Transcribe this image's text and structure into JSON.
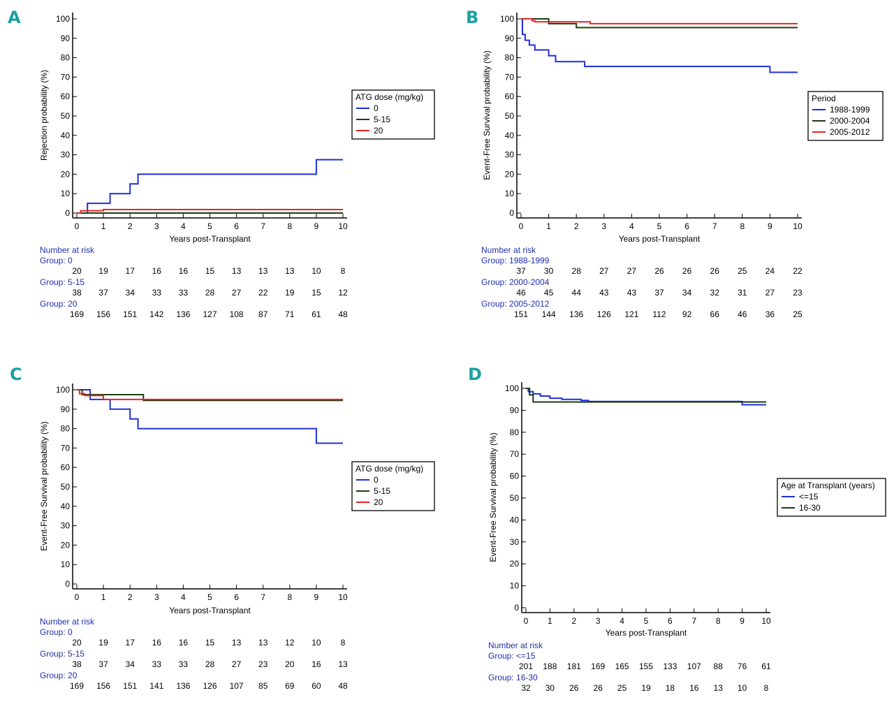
{
  "chart_data": [
    {
      "letter": "A",
      "type": "line",
      "xlabel": "Years post-Transplant",
      "ylabel": "Rejection probability (%)",
      "xlim": [
        0,
        10
      ],
      "ylim": [
        0,
        100
      ],
      "x_ticks": [
        "0",
        "1",
        "2",
        "3",
        "4",
        "5",
        "6",
        "7",
        "8",
        "9",
        "10"
      ],
      "y_ticks": [
        "0",
        "10",
        "20",
        "30",
        "40",
        "50",
        "60",
        "70",
        "80",
        "90",
        "100"
      ],
      "legend": {
        "title": "ATG dose (mg/kg)",
        "entries": [
          {
            "label": "0",
            "color": "#1f2fd6"
          },
          {
            "label": "5-15",
            "color": "#1d3b12"
          },
          {
            "label": "20",
            "color": "#e52521"
          }
        ]
      },
      "series": [
        {
          "name": "0",
          "color": "#1f2fd6",
          "points": [
            [
              0,
              0
            ],
            [
              0.4,
              0
            ],
            [
              0.4,
              5
            ],
            [
              1.25,
              5
            ],
            [
              1.25,
              10
            ],
            [
              2,
              10
            ],
            [
              2,
              15
            ],
            [
              2.3,
              15
            ],
            [
              2.3,
              20
            ],
            [
              9,
              20
            ],
            [
              9,
              27.5
            ],
            [
              10,
              27.5
            ]
          ]
        },
        {
          "name": "5-15",
          "color": "#1d3b12",
          "points": [
            [
              0,
              0
            ],
            [
              10,
              0
            ]
          ]
        },
        {
          "name": "20",
          "color": "#e52521",
          "points": [
            [
              0,
              0
            ],
            [
              0.15,
              0
            ],
            [
              0.15,
              1.2
            ],
            [
              1,
              1.2
            ],
            [
              1,
              1.8
            ],
            [
              10,
              1.8
            ]
          ]
        }
      ],
      "risk": {
        "title": "Number at risk",
        "groups": [
          {
            "label": "Group: 0",
            "values": [
              "20",
              "19",
              "17",
              "16",
              "16",
              "15",
              "13",
              "13",
              "13",
              "10",
              "8"
            ]
          },
          {
            "label": "Group: 5-15",
            "values": [
              "38",
              "37",
              "34",
              "33",
              "33",
              "28",
              "27",
              "22",
              "19",
              "15",
              "12"
            ]
          },
          {
            "label": "Group: 20",
            "values": [
              "169",
              "156",
              "151",
              "142",
              "136",
              "127",
              "108",
              "87",
              "71",
              "61",
              "48"
            ]
          }
        ]
      }
    },
    {
      "letter": "B",
      "type": "line",
      "xlabel": "Years post-Transplant",
      "ylabel": "Event-Free Survival probability (%)",
      "xlim": [
        0,
        10
      ],
      "ylim": [
        0,
        100
      ],
      "x_ticks": [
        "0",
        "1",
        "2",
        "3",
        "4",
        "5",
        "6",
        "7",
        "8",
        "9",
        "10"
      ],
      "y_ticks": [
        "0",
        "10",
        "20",
        "30",
        "40",
        "50",
        "60",
        "70",
        "80",
        "90",
        "100"
      ],
      "legend": {
        "title": "Period",
        "entries": [
          {
            "label": "1988-1999",
            "color": "#1f2fd6"
          },
          {
            "label": "2000-2004",
            "color": "#1d3b12"
          },
          {
            "label": "2005-2012",
            "color": "#e52521"
          }
        ]
      },
      "series": [
        {
          "name": "1988-1999",
          "color": "#1f2fd6",
          "points": [
            [
              0,
              100
            ],
            [
              0.05,
              100
            ],
            [
              0.05,
              92
            ],
            [
              0.15,
              92
            ],
            [
              0.15,
              89
            ],
            [
              0.3,
              89
            ],
            [
              0.3,
              86.5
            ],
            [
              0.5,
              86.5
            ],
            [
              0.5,
              84
            ],
            [
              1,
              84
            ],
            [
              1,
              81
            ],
            [
              1.25,
              81
            ],
            [
              1.25,
              78
            ],
            [
              2.3,
              78
            ],
            [
              2.3,
              75.5
            ],
            [
              9,
              75.5
            ],
            [
              9,
              72.5
            ],
            [
              10,
              72.5
            ]
          ]
        },
        {
          "name": "2000-2004",
          "color": "#1d3b12",
          "points": [
            [
              0,
              100
            ],
            [
              1,
              100
            ],
            [
              1,
              97.5
            ],
            [
              2,
              97.5
            ],
            [
              2,
              95.5
            ],
            [
              10,
              95.5
            ]
          ]
        },
        {
          "name": "2005-2012",
          "color": "#e52521",
          "points": [
            [
              0,
              100
            ],
            [
              0.4,
              100
            ],
            [
              0.4,
              99
            ],
            [
              0.5,
              99
            ],
            [
              0.5,
              98.5
            ],
            [
              2.5,
              98.5
            ],
            [
              2.5,
              97.5
            ],
            [
              10,
              97.5
            ]
          ]
        }
      ],
      "risk": {
        "title": "Number at risk",
        "groups": [
          {
            "label": "Group: 1988-1999",
            "values": [
              "37",
              "30",
              "28",
              "27",
              "27",
              "26",
              "26",
              "26",
              "25",
              "24",
              "22"
            ]
          },
          {
            "label": "Group: 2000-2004",
            "values": [
              "46",
              "45",
              "44",
              "43",
              "43",
              "37",
              "34",
              "32",
              "31",
              "27",
              "23"
            ]
          },
          {
            "label": "Group: 2005-2012",
            "values": [
              "151",
              "144",
              "136",
              "126",
              "121",
              "112",
              "92",
              "66",
              "46",
              "36",
              "25"
            ]
          }
        ]
      }
    },
    {
      "letter": "C",
      "type": "line",
      "xlabel": "Years post-Transplant",
      "ylabel": "Event-Free Survival probability (%)",
      "xlim": [
        0,
        10
      ],
      "ylim": [
        0,
        100
      ],
      "x_ticks": [
        "0",
        "1",
        "2",
        "3",
        "4",
        "5",
        "6",
        "7",
        "8",
        "9",
        "10"
      ],
      "y_ticks": [
        "0",
        "10",
        "20",
        "30",
        "40",
        "50",
        "60",
        "70",
        "80",
        "90",
        "100"
      ],
      "legend": {
        "title": "ATG dose (mg/kg)",
        "entries": [
          {
            "label": "0",
            "color": "#1f2fd6"
          },
          {
            "label": "5-15",
            "color": "#1d3b12"
          },
          {
            "label": "20",
            "color": "#e52521"
          }
        ]
      },
      "series": [
        {
          "name": "0",
          "color": "#1f2fd6",
          "points": [
            [
              0,
              100
            ],
            [
              0.5,
              100
            ],
            [
              0.5,
              95
            ],
            [
              1.25,
              95
            ],
            [
              1.25,
              90
            ],
            [
              2,
              90
            ],
            [
              2,
              85
            ],
            [
              2.3,
              85
            ],
            [
              2.3,
              80
            ],
            [
              9,
              80
            ],
            [
              9,
              72.5
            ],
            [
              10,
              72.5
            ]
          ]
        },
        {
          "name": "5-15",
          "color": "#1d3b12",
          "points": [
            [
              0,
              100
            ],
            [
              0.2,
              100
            ],
            [
              0.2,
              97.5
            ],
            [
              2.5,
              97.5
            ],
            [
              2.5,
              94.5
            ],
            [
              10,
              94.5
            ]
          ]
        },
        {
          "name": "20",
          "color": "#e52521",
          "points": [
            [
              0,
              100
            ],
            [
              0.1,
              100
            ],
            [
              0.1,
              98
            ],
            [
              0.3,
              98
            ],
            [
              0.3,
              97
            ],
            [
              1,
              97
            ],
            [
              1,
              95
            ],
            [
              10,
              95
            ]
          ]
        }
      ],
      "risk": {
        "title": "Number at risk",
        "groups": [
          {
            "label": "Group: 0",
            "values": [
              "20",
              "19",
              "17",
              "16",
              "16",
              "15",
              "13",
              "13",
              "12",
              "10",
              "8"
            ]
          },
          {
            "label": "Group: 5-15",
            "values": [
              "38",
              "37",
              "34",
              "33",
              "33",
              "28",
              "27",
              "23",
              "20",
              "16",
              "13"
            ]
          },
          {
            "label": "Group: 20",
            "values": [
              "169",
              "156",
              "151",
              "141",
              "136",
              "126",
              "107",
              "85",
              "69",
              "60",
              "48"
            ]
          }
        ]
      }
    },
    {
      "letter": "D",
      "type": "line",
      "xlabel": "Years post-Transplant",
      "ylabel": "Event-Free Survival probability (%)",
      "xlim": [
        0,
        10
      ],
      "ylim": [
        0,
        100
      ],
      "x_ticks": [
        "0",
        "1",
        "2",
        "3",
        "4",
        "5",
        "6",
        "7",
        "8",
        "9",
        "10"
      ],
      "y_ticks": [
        "0",
        "10",
        "20",
        "30",
        "40",
        "50",
        "60",
        "70",
        "80",
        "90",
        "100"
      ],
      "legend": {
        "title": "Age at Transplant (years)",
        "entries": [
          {
            "label": "<=15",
            "color": "#1f2fd6"
          },
          {
            "label": "16-30",
            "color": "#1d3b12"
          }
        ]
      },
      "series": [
        {
          "name": "<=15",
          "color": "#1f2fd6",
          "points": [
            [
              0,
              100
            ],
            [
              0.1,
              100
            ],
            [
              0.1,
              98.5
            ],
            [
              0.3,
              98.5
            ],
            [
              0.3,
              97.5
            ],
            [
              0.6,
              97.5
            ],
            [
              0.6,
              96.5
            ],
            [
              1,
              96.5
            ],
            [
              1,
              95.5
            ],
            [
              1.5,
              95.5
            ],
            [
              1.5,
              95
            ],
            [
              2.3,
              95
            ],
            [
              2.3,
              94.5
            ],
            [
              2.6,
              94.5
            ],
            [
              2.6,
              94
            ],
            [
              9,
              94
            ],
            [
              9,
              92.5
            ],
            [
              10,
              92.5
            ]
          ]
        },
        {
          "name": "16-30",
          "color": "#1d3b12",
          "points": [
            [
              0,
              100
            ],
            [
              0.15,
              100
            ],
            [
              0.15,
              97
            ],
            [
              0.3,
              97
            ],
            [
              0.3,
              93.8
            ],
            [
              10,
              93.8
            ]
          ]
        }
      ],
      "risk": {
        "title": "Number at risk",
        "groups": [
          {
            "label": "Group: <=15",
            "values": [
              "201",
              "188",
              "181",
              "169",
              "165",
              "155",
              "133",
              "107",
              "88",
              "76",
              "61"
            ]
          },
          {
            "label": "Group: 16-30",
            "values": [
              "32",
              "30",
              "26",
              "26",
              "25",
              "19",
              "18",
              "16",
              "13",
              "10",
              "8"
            ]
          }
        ]
      }
    }
  ]
}
